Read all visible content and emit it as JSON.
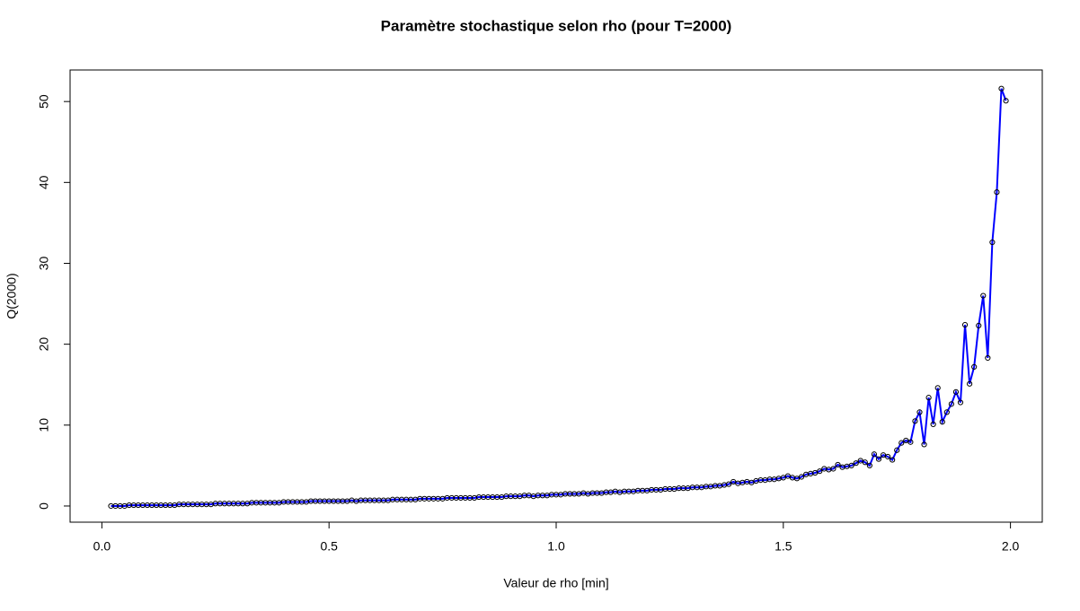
{
  "chart_data": {
    "type": "line",
    "title": "Paramètre stochastique selon rho (pour T=2000)",
    "xlabel": "Valeur de rho [min]",
    "ylabel": "Q(2000)",
    "xlim": [
      -0.07,
      2.07
    ],
    "ylim": [
      -2,
      53.9
    ],
    "xticks": [
      {
        "value": 0,
        "label": "0.0"
      },
      0.5,
      {
        "value": 1,
        "label": "1.0"
      },
      1.5,
      {
        "value": 2,
        "label": "2.0"
      }
    ],
    "yticks": [
      0,
      10,
      20,
      30,
      40,
      50
    ],
    "grid": false,
    "x": [
      0.02,
      0.03,
      0.04,
      0.05,
      0.06,
      0.07,
      0.08,
      0.09,
      0.1,
      0.11,
      0.12,
      0.13,
      0.14,
      0.15,
      0.16,
      0.17,
      0.18,
      0.19,
      0.2,
      0.21,
      0.22,
      0.23,
      0.24,
      0.25,
      0.26,
      0.27,
      0.28,
      0.29,
      0.3,
      0.31,
      0.32,
      0.33,
      0.34,
      0.35,
      0.36,
      0.37,
      0.38,
      0.39,
      0.4,
      0.41,
      0.42,
      0.43,
      0.44,
      0.45,
      0.46,
      0.47,
      0.48,
      0.49,
      0.5,
      0.51,
      0.52,
      0.53,
      0.54,
      0.55,
      0.56,
      0.57,
      0.58,
      0.59,
      0.6,
      0.61,
      0.62,
      0.63,
      0.64,
      0.65,
      0.66,
      0.67,
      0.68,
      0.69,
      0.7,
      0.71,
      0.72,
      0.73,
      0.74,
      0.75,
      0.76,
      0.77,
      0.78,
      0.79,
      0.8,
      0.81,
      0.82,
      0.83,
      0.84,
      0.85,
      0.86,
      0.87,
      0.88,
      0.89,
      0.9,
      0.91,
      0.92,
      0.93,
      0.94,
      0.95,
      0.96,
      0.97,
      0.98,
      0.99,
      1.0,
      1.01,
      1.02,
      1.03,
      1.04,
      1.05,
      1.06,
      1.07,
      1.08,
      1.09,
      1.1,
      1.11,
      1.12,
      1.13,
      1.14,
      1.15,
      1.16,
      1.17,
      1.18,
      1.19,
      1.2,
      1.21,
      1.22,
      1.23,
      1.24,
      1.25,
      1.26,
      1.27,
      1.28,
      1.29,
      1.3,
      1.31,
      1.32,
      1.33,
      1.34,
      1.35,
      1.36,
      1.37,
      1.38,
      1.39,
      1.4,
      1.41,
      1.42,
      1.43,
      1.44,
      1.45,
      1.46,
      1.47,
      1.48,
      1.49,
      1.5,
      1.51,
      1.52,
      1.53,
      1.54,
      1.55,
      1.56,
      1.57,
      1.58,
      1.59,
      1.6,
      1.61,
      1.62,
      1.63,
      1.64,
      1.65,
      1.66,
      1.67,
      1.68,
      1.69,
      1.7,
      1.71,
      1.72,
      1.73,
      1.74,
      1.75,
      1.76,
      1.77,
      1.78,
      1.79,
      1.8,
      1.81,
      1.82,
      1.83,
      1.84,
      1.85,
      1.86,
      1.87,
      1.88,
      1.89,
      1.9,
      1.91,
      1.92,
      1.93,
      1.94,
      1.95,
      1.96,
      1.97,
      1.98,
      1.99
    ],
    "series": [
      {
        "color": "#0000ff",
        "marker_color": "#000000",
        "values": [
          0.0,
          0.0,
          0.0,
          0.0,
          0.1,
          0.1,
          0.1,
          0.1,
          0.1,
          0.1,
          0.1,
          0.1,
          0.1,
          0.1,
          0.1,
          0.2,
          0.2,
          0.2,
          0.2,
          0.2,
          0.2,
          0.2,
          0.2,
          0.3,
          0.3,
          0.3,
          0.3,
          0.3,
          0.3,
          0.3,
          0.3,
          0.4,
          0.4,
          0.4,
          0.4,
          0.4,
          0.4,
          0.4,
          0.5,
          0.5,
          0.5,
          0.5,
          0.5,
          0.5,
          0.6,
          0.6,
          0.6,
          0.6,
          0.6,
          0.6,
          0.6,
          0.6,
          0.6,
          0.7,
          0.6,
          0.7,
          0.7,
          0.7,
          0.7,
          0.7,
          0.7,
          0.7,
          0.8,
          0.8,
          0.8,
          0.8,
          0.8,
          0.8,
          0.9,
          0.9,
          0.9,
          0.9,
          0.9,
          0.9,
          1.0,
          1.0,
          1.0,
          1.0,
          1.0,
          1.0,
          1.0,
          1.1,
          1.1,
          1.1,
          1.1,
          1.1,
          1.1,
          1.2,
          1.2,
          1.2,
          1.2,
          1.3,
          1.3,
          1.2,
          1.3,
          1.3,
          1.3,
          1.4,
          1.4,
          1.4,
          1.5,
          1.5,
          1.5,
          1.5,
          1.6,
          1.5,
          1.6,
          1.6,
          1.6,
          1.7,
          1.7,
          1.8,
          1.7,
          1.8,
          1.8,
          1.8,
          1.9,
          1.9,
          1.9,
          2.0,
          2.0,
          2.0,
          2.1,
          2.1,
          2.1,
          2.2,
          2.2,
          2.2,
          2.3,
          2.3,
          2.3,
          2.4,
          2.4,
          2.5,
          2.5,
          2.6,
          2.7,
          3.0,
          2.8,
          2.9,
          3.0,
          2.9,
          3.1,
          3.2,
          3.2,
          3.3,
          3.3,
          3.4,
          3.5,
          3.7,
          3.5,
          3.4,
          3.6,
          3.9,
          4.0,
          4.1,
          4.3,
          4.6,
          4.5,
          4.6,
          5.1,
          4.8,
          4.9,
          5.0,
          5.3,
          5.6,
          5.4,
          5.0,
          6.4,
          5.8,
          6.3,
          6.1,
          5.7,
          6.9,
          7.8,
          8.1,
          7.9,
          10.5,
          11.6,
          7.6,
          13.4,
          10.1,
          14.6,
          10.4,
          11.6,
          12.6,
          14.1,
          12.8,
          22.4,
          15.1,
          17.2,
          22.3,
          26.0,
          18.3,
          32.6,
          38.8,
          51.6,
          50.1
        ]
      }
    ]
  }
}
